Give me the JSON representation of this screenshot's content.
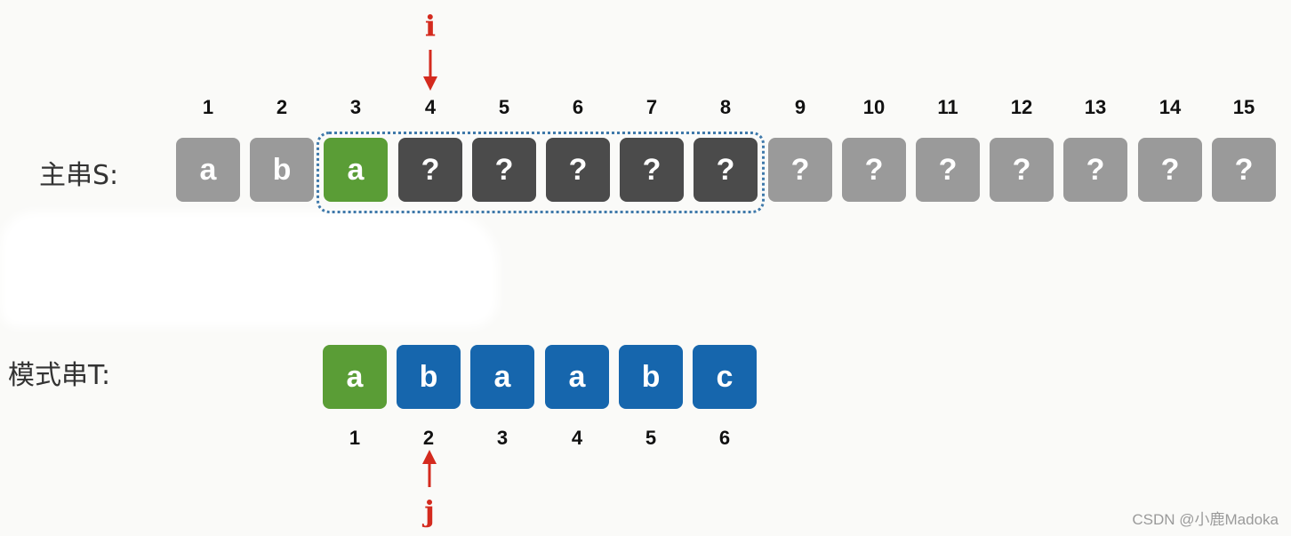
{
  "labels": {
    "main_string": "主串S:",
    "pattern_string": "模式串T:"
  },
  "pointers": {
    "i": "i",
    "j": "j"
  },
  "main_indices": [
    "1",
    "2",
    "3",
    "4",
    "5",
    "6",
    "7",
    "8",
    "9",
    "10",
    "11",
    "12",
    "13",
    "14",
    "15"
  ],
  "main_cells": [
    {
      "char": "a",
      "state": "gray"
    },
    {
      "char": "b",
      "state": "gray"
    },
    {
      "char": "a",
      "state": "green"
    },
    {
      "char": "?",
      "state": "dark"
    },
    {
      "char": "?",
      "state": "dark"
    },
    {
      "char": "?",
      "state": "dark"
    },
    {
      "char": "?",
      "state": "dark"
    },
    {
      "char": "?",
      "state": "dark"
    },
    {
      "char": "?",
      "state": "gray"
    },
    {
      "char": "?",
      "state": "gray"
    },
    {
      "char": "?",
      "state": "gray"
    },
    {
      "char": "?",
      "state": "gray"
    },
    {
      "char": "?",
      "state": "gray"
    },
    {
      "char": "?",
      "state": "gray"
    },
    {
      "char": "?",
      "state": "gray"
    }
  ],
  "pattern_cells": [
    {
      "char": "a",
      "state": "green"
    },
    {
      "char": "b",
      "state": "blue"
    },
    {
      "char": "a",
      "state": "blue"
    },
    {
      "char": "a",
      "state": "blue"
    },
    {
      "char": "b",
      "state": "blue"
    },
    {
      "char": "c",
      "state": "blue"
    }
  ],
  "pattern_indices": [
    "1",
    "2",
    "3",
    "4",
    "5",
    "6"
  ],
  "watermark": "CSDN @小鹿Madoka",
  "colors": {
    "gray": "#9a9a9a",
    "dark": "#4b4b4b",
    "green": "#5a9d36",
    "blue": "#1666ad",
    "pointer_red": "#d42a1e",
    "window_border": "#3f79aa"
  }
}
